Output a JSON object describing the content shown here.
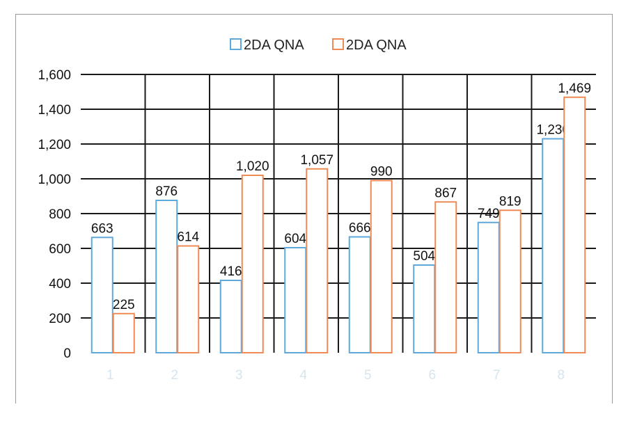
{
  "chart_data": {
    "type": "bar",
    "categories": [
      "1",
      "2",
      "3",
      "4",
      "5",
      "6",
      "7",
      "8"
    ],
    "series": [
      {
        "name": "2DA QNA",
        "color": "#5fa8dc",
        "values": [
          663,
          876,
          416,
          604,
          666,
          504,
          749,
          1230
        ],
        "labels": [
          "663",
          "876",
          "416",
          "604",
          "666",
          "504",
          "749",
          "1,230"
        ]
      },
      {
        "name": "2DA QNA",
        "color": "#ef8a56",
        "values": [
          225,
          614,
          1020,
          1057,
          990,
          867,
          819,
          1469
        ],
        "labels": [
          "225",
          "614",
          "1,020",
          "1,057",
          "990",
          "867",
          "819",
          "1,469"
        ]
      }
    ],
    "ylim": [
      0,
      1600
    ],
    "yticks": [
      0,
      200,
      400,
      600,
      800,
      1000,
      1200,
      1400,
      1600
    ],
    "ytick_labels": [
      "0",
      "200",
      "400",
      "600",
      "800",
      "1,000",
      "1,200",
      "1,400",
      "1,600"
    ],
    "grid": true,
    "legend_position": "top-center",
    "title": "",
    "xlabel": "",
    "ylabel": ""
  }
}
